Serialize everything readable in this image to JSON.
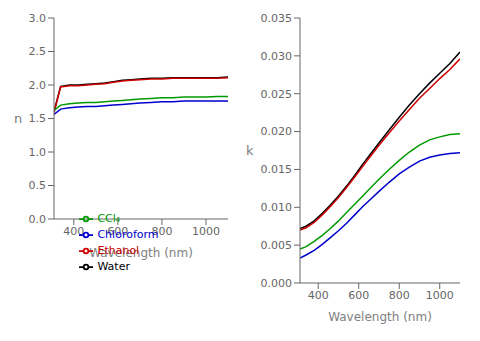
{
  "chart_data": [
    {
      "type": "line",
      "x": [
        310,
        340,
        380,
        420,
        460,
        500,
        540,
        580,
        620,
        660,
        700,
        750,
        800,
        850,
        900,
        950,
        1000,
        1050,
        1100
      ],
      "xlim": [
        310,
        1100
      ],
      "xticks": [
        400,
        600,
        800,
        1000
      ],
      "ylim": [
        0.0,
        3.0
      ],
      "yticks": [
        {
          "value": 0.0,
          "label": "0.0"
        },
        0.5,
        {
          "value": 1.0,
          "label": "1.0"
        },
        1.5,
        {
          "value": 2.0,
          "label": "2.0"
        },
        2.5,
        {
          "value": 3.0,
          "label": "3.0"
        }
      ],
      "x_label": "Wavelength (nm)",
      "y_label": "n",
      "legend": "bottom",
      "series": [
        {
          "name": "Water",
          "color": "#000000",
          "values": [
            1.6,
            1.98,
            2.0,
            2.0,
            2.01,
            2.02,
            2.03,
            2.05,
            2.07,
            2.08,
            2.09,
            2.1,
            2.1,
            2.11,
            2.11,
            2.11,
            2.11,
            2.11,
            2.12
          ]
        },
        {
          "name": "Ethanol",
          "color": "#cc0000",
          "values": [
            1.59,
            1.97,
            1.99,
            1.99,
            2.0,
            2.01,
            2.02,
            2.04,
            2.06,
            2.07,
            2.08,
            2.09,
            2.09,
            2.1,
            2.1,
            2.1,
            2.1,
            2.1,
            2.11
          ]
        },
        {
          "name": "CCl₄",
          "color": "#009900",
          "values": [
            1.62,
            1.7,
            1.72,
            1.73,
            1.74,
            1.74,
            1.75,
            1.76,
            1.77,
            1.78,
            1.79,
            1.8,
            1.81,
            1.81,
            1.82,
            1.82,
            1.82,
            1.83,
            1.83
          ]
        },
        {
          "name": "Chloroform",
          "color": "#0000cc",
          "values": [
            1.56,
            1.64,
            1.66,
            1.67,
            1.68,
            1.68,
            1.69,
            1.7,
            1.71,
            1.72,
            1.73,
            1.74,
            1.75,
            1.75,
            1.76,
            1.76,
            1.76,
            1.76,
            1.76
          ]
        }
      ]
    },
    {
      "type": "line",
      "x": [
        310,
        340,
        380,
        420,
        460,
        500,
        540,
        580,
        620,
        660,
        700,
        750,
        800,
        850,
        900,
        950,
        1000,
        1050,
        1100
      ],
      "xlim": [
        310,
        1100
      ],
      "xticks": [
        400,
        600,
        800,
        1000
      ],
      "ylim": [
        0.0,
        0.035
      ],
      "yticks": [
        {
          "value": 0.0,
          "label": "0.000"
        },
        {
          "value": 0.005,
          "label": "0.005"
        },
        {
          "value": 0.01,
          "label": "0.010"
        },
        {
          "value": 0.015,
          "label": "0.015"
        },
        {
          "value": 0.02,
          "label": "0.020"
        },
        {
          "value": 0.025,
          "label": "0.025"
        },
        {
          "value": 0.03,
          "label": "0.030"
        },
        {
          "value": 0.035,
          "label": "0.035"
        }
      ],
      "x_label": "Wavelength (nm)",
      "y_label": "k",
      "series": [
        {
          "color": "#000000",
          "values": [
            0.0072,
            0.0075,
            0.0082,
            0.0092,
            0.0103,
            0.0115,
            0.0128,
            0.0142,
            0.0157,
            0.0171,
            0.0185,
            0.0202,
            0.0219,
            0.0235,
            0.025,
            0.0264,
            0.0277,
            0.029,
            0.0305
          ]
        },
        {
          "color": "#cc0000",
          "values": [
            0.007,
            0.0073,
            0.008,
            0.009,
            0.0101,
            0.0113,
            0.0126,
            0.014,
            0.0154,
            0.0168,
            0.0182,
            0.0198,
            0.0214,
            0.0229,
            0.0244,
            0.0257,
            0.027,
            0.0282,
            0.0296
          ]
        },
        {
          "color": "#009900",
          "values": [
            0.0045,
            0.0048,
            0.0055,
            0.0063,
            0.0072,
            0.0082,
            0.0093,
            0.0104,
            0.0115,
            0.0126,
            0.0137,
            0.015,
            0.0162,
            0.0173,
            0.0182,
            0.0189,
            0.0193,
            0.0196,
            0.0197
          ]
        },
        {
          "color": "#0000cc",
          "values": [
            0.0033,
            0.0037,
            0.0043,
            0.0051,
            0.006,
            0.0069,
            0.0079,
            0.009,
            0.0101,
            0.0111,
            0.0121,
            0.0133,
            0.0144,
            0.0153,
            0.0161,
            0.0166,
            0.0169,
            0.0171,
            0.0172
          ]
        }
      ]
    }
  ]
}
